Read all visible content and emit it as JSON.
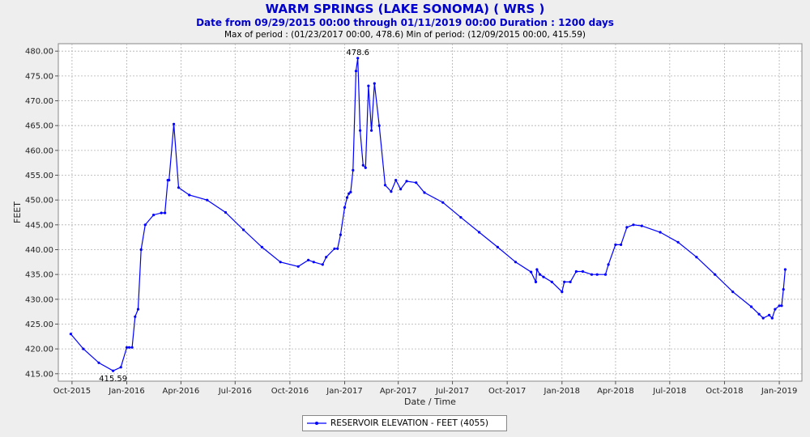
{
  "chart_data": {
    "type": "line",
    "title": "WARM SPRINGS (LAKE SONOMA) ( WRS )",
    "subtitle": "Date from 09/29/2015 00:00 through 01/11/2019 00:00 Duration : 1200 days",
    "subtitle2": "Max of period : (01/23/2017 00:00, 478.6) Min of period: (12/09/2015 00:00,  415.59)",
    "xlabel": "Date / Time",
    "ylabel": "FEET",
    "ylim": [
      413.5,
      481.5
    ],
    "xlim": [
      "2015-09-08",
      "2019-02-08"
    ],
    "grid": true,
    "legend_position": "bottom",
    "y_ticks": [
      415,
      420,
      425,
      430,
      435,
      440,
      445,
      450,
      455,
      460,
      465,
      470,
      475,
      480
    ],
    "y_tick_labels": [
      "415.00",
      "420.00",
      "425.00",
      "430.00",
      "435.00",
      "440.00",
      "445.00",
      "450.00",
      "455.00",
      "460.00",
      "465.00",
      "470.00",
      "475.00",
      "480.00"
    ],
    "x_ticks": [
      "2015-10-01",
      "2016-01-01",
      "2016-04-01",
      "2016-07-01",
      "2016-10-01",
      "2017-01-01",
      "2017-04-01",
      "2017-07-01",
      "2017-10-01",
      "2018-01-01",
      "2018-04-01",
      "2018-07-01",
      "2018-10-01",
      "2019-01-01"
    ],
    "x_tick_labels": [
      "Oct-2015",
      "Jan-2016",
      "Apr-2016",
      "Jul-2016",
      "Oct-2016",
      "Jan-2017",
      "Apr-2017",
      "Jul-2017",
      "Oct-2017",
      "Jan-2018",
      "Apr-2018",
      "Jul-2018",
      "Oct-2018",
      "Jan-2019"
    ],
    "series": [
      {
        "name": "RESERVOIR ELEVATION - FEET (4055)",
        "color": "#0000ff",
        "x": [
          "2015-09-29",
          "2015-10-20",
          "2015-11-15",
          "2015-12-09",
          "2015-12-22",
          "2016-01-01",
          "2016-01-05",
          "2016-01-10",
          "2016-01-15",
          "2016-01-20",
          "2016-01-25",
          "2016-02-01",
          "2016-02-15",
          "2016-02-28",
          "2016-03-05",
          "2016-03-10",
          "2016-03-12",
          "2016-03-20",
          "2016-03-28",
          "2016-04-15",
          "2016-05-15",
          "2016-06-15",
          "2016-07-15",
          "2016-08-15",
          "2016-09-15",
          "2016-10-15",
          "2016-11-01",
          "2016-11-10",
          "2016-11-25",
          "2016-12-01",
          "2016-12-15",
          "2016-12-20",
          "2016-12-25",
          "2017-01-01",
          "2017-01-05",
          "2017-01-08",
          "2017-01-11",
          "2017-01-15",
          "2017-01-20",
          "2017-01-23",
          "2017-01-27",
          "2017-02-01",
          "2017-02-05",
          "2017-02-10",
          "2017-02-15",
          "2017-02-20",
          "2017-02-28",
          "2017-03-10",
          "2017-03-20",
          "2017-03-28",
          "2017-04-05",
          "2017-04-15",
          "2017-05-01",
          "2017-05-15",
          "2017-06-15",
          "2017-07-15",
          "2017-08-15",
          "2017-09-15",
          "2017-10-15",
          "2017-11-10",
          "2017-11-18",
          "2017-11-20",
          "2017-11-25",
          "2017-12-01",
          "2017-12-15",
          "2018-01-01",
          "2018-01-05",
          "2018-01-15",
          "2018-01-25",
          "2018-02-05",
          "2018-02-20",
          "2018-03-01",
          "2018-03-15",
          "2018-03-20",
          "2018-04-01",
          "2018-04-10",
          "2018-04-20",
          "2018-05-01",
          "2018-05-15",
          "2018-06-15",
          "2018-07-15",
          "2018-08-15",
          "2018-09-15",
          "2018-10-15",
          "2018-11-15",
          "2018-11-28",
          "2018-12-05",
          "2018-12-15",
          "2018-12-20",
          "2018-12-25",
          "2019-01-01",
          "2019-01-05",
          "2019-01-08",
          "2019-01-11"
        ],
        "values": [
          423.0,
          420.0,
          417.2,
          415.59,
          416.3,
          420.3,
          420.3,
          420.3,
          426.5,
          428.0,
          440.0,
          445.0,
          447.0,
          447.4,
          447.4,
          454.0,
          454.0,
          465.3,
          452.5,
          451.0,
          450.0,
          447.5,
          444.0,
          440.5,
          437.5,
          436.6,
          437.9,
          437.5,
          437.0,
          438.5,
          440.2,
          440.2,
          443.0,
          448.5,
          450.5,
          451.3,
          451.6,
          456.0,
          476.0,
          478.6,
          464.0,
          457.0,
          456.5,
          473.0,
          464.0,
          473.5,
          465.0,
          453.0,
          451.7,
          454.0,
          452.2,
          453.8,
          453.5,
          451.5,
          449.5,
          446.5,
          443.5,
          440.5,
          437.5,
          435.5,
          433.5,
          436.0,
          435.0,
          434.5,
          433.5,
          431.5,
          433.5,
          433.5,
          435.6,
          435.6,
          435.0,
          435.0,
          435.0,
          437.0,
          441.0,
          441.0,
          444.5,
          445.0,
          444.8,
          443.5,
          441.5,
          438.5,
          435.0,
          431.5,
          428.5,
          427.0,
          426.2,
          426.8,
          426.2,
          428.0,
          428.7,
          428.7,
          432.0,
          436.0
        ]
      }
    ],
    "annotations": [
      {
        "text": "478.6",
        "x": "2017-01-23",
        "y": 478.6
      },
      {
        "text": "415.59",
        "x": "2015-12-09",
        "y": 415.59
      }
    ]
  }
}
